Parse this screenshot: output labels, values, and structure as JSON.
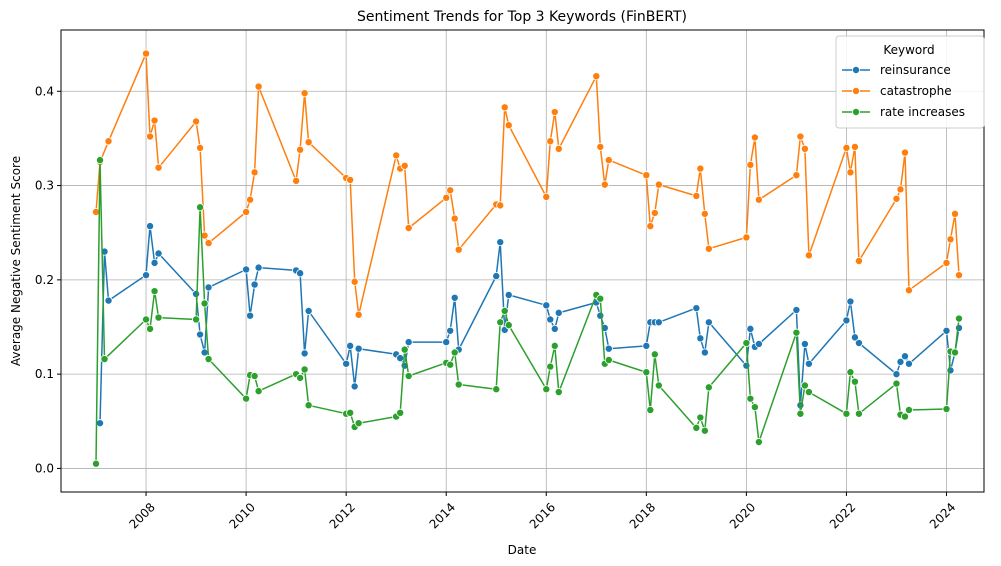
{
  "chart_data": {
    "type": "line",
    "title": "Sentiment Trends for Top 3 Keywords (FinBERT)",
    "xlabel": "Date",
    "ylabel": "Average Negative Sentiment Score",
    "xlim": [
      2006.3,
      2024.75
    ],
    "ylim": [
      -0.025,
      0.465
    ],
    "x_ticks": [
      2008,
      2010,
      2012,
      2014,
      2016,
      2018,
      2020,
      2022,
      2024
    ],
    "y_ticks": [
      0.0,
      0.1,
      0.2,
      0.3,
      0.4
    ],
    "y_tick_labels": [
      "0.0",
      "0.1",
      "0.2",
      "0.3",
      "0.4"
    ],
    "grid": true,
    "legend": {
      "title": "Keyword",
      "position": "top-right"
    },
    "series": [
      {
        "name": "reinsurance",
        "color": "#1f77b4",
        "x": [
          2007.08,
          2007.17,
          2007.25,
          2008.0,
          2008.08,
          2008.17,
          2008.25,
          2009.0,
          2009.08,
          2009.17,
          2009.25,
          2010.0,
          2010.08,
          2010.17,
          2010.25,
          2011.0,
          2011.08,
          2011.17,
          2011.25,
          2012.0,
          2012.08,
          2012.17,
          2012.25,
          2013.0,
          2013.08,
          2013.17,
          2013.25,
          2014.0,
          2014.08,
          2014.17,
          2014.25,
          2015.0,
          2015.08,
          2015.17,
          2015.25,
          2016.0,
          2016.08,
          2016.17,
          2016.25,
          2017.0,
          2017.08,
          2017.17,
          2017.25,
          2018.0,
          2018.08,
          2018.17,
          2018.25,
          2019.0,
          2019.08,
          2019.17,
          2019.25,
          2020.0,
          2020.08,
          2020.17,
          2020.25,
          2021.0,
          2021.08,
          2021.17,
          2021.25,
          2022.0,
          2022.08,
          2022.17,
          2022.25,
          2023.0,
          2023.08,
          2023.17,
          2023.25,
          2024.0,
          2024.08,
          2024.17,
          2024.25
        ],
        "y": [
          0.048,
          0.23,
          0.178,
          0.205,
          0.257,
          0.218,
          0.228,
          0.185,
          0.142,
          0.123,
          0.192,
          0.211,
          0.162,
          0.195,
          0.213,
          0.21,
          0.207,
          0.122,
          0.167,
          0.111,
          0.13,
          0.087,
          0.127,
          0.121,
          0.117,
          0.109,
          0.134,
          0.134,
          0.146,
          0.181,
          0.126,
          0.204,
          0.24,
          0.147,
          0.184,
          0.173,
          0.158,
          0.148,
          0.165,
          0.176,
          0.162,
          0.149,
          0.127,
          0.13,
          0.155,
          0.155,
          0.155,
          0.17,
          0.138,
          0.123,
          0.155,
          0.109,
          0.148,
          0.129,
          0.132,
          0.168,
          0.067,
          0.132,
          0.111,
          0.157,
          0.177,
          0.139,
          0.133,
          0.1,
          0.113,
          0.119,
          0.111,
          0.146,
          0.104,
          0.123,
          0.149
        ]
      },
      {
        "name": "catastrophe",
        "color": "#ff7f0e",
        "x": [
          2007.0,
          2007.08,
          2007.25,
          2008.0,
          2008.08,
          2008.17,
          2008.25,
          2009.0,
          2009.08,
          2009.17,
          2009.25,
          2010.0,
          2010.08,
          2010.17,
          2010.25,
          2011.0,
          2011.08,
          2011.17,
          2011.25,
          2012.0,
          2012.08,
          2012.17,
          2012.25,
          2013.0,
          2013.08,
          2013.17,
          2013.25,
          2014.0,
          2014.08,
          2014.17,
          2014.25,
          2015.0,
          2015.08,
          2015.17,
          2015.25,
          2016.0,
          2016.08,
          2016.17,
          2016.25,
          2017.0,
          2017.08,
          2017.17,
          2017.25,
          2018.0,
          2018.08,
          2018.17,
          2018.25,
          2019.0,
          2019.08,
          2019.17,
          2019.25,
          2020.0,
          2020.08,
          2020.17,
          2020.25,
          2021.0,
          2021.08,
          2021.17,
          2021.25,
          2022.0,
          2022.08,
          2022.17,
          2022.25,
          2023.0,
          2023.08,
          2023.17,
          2023.25,
          2024.0,
          2024.08,
          2024.17,
          2024.25
        ],
        "y": [
          0.272,
          0.325,
          0.347,
          0.44,
          0.352,
          0.369,
          0.319,
          0.368,
          0.34,
          0.247,
          0.239,
          0.272,
          0.285,
          0.314,
          0.405,
          0.305,
          0.338,
          0.398,
          0.346,
          0.308,
          0.306,
          0.198,
          0.163,
          0.332,
          0.318,
          0.321,
          0.255,
          0.287,
          0.295,
          0.265,
          0.232,
          0.28,
          0.279,
          0.383,
          0.364,
          0.288,
          0.347,
          0.378,
          0.339,
          0.416,
          0.341,
          0.301,
          0.327,
          0.311,
          0.257,
          0.271,
          0.301,
          0.289,
          0.318,
          0.27,
          0.233,
          0.245,
          0.322,
          0.351,
          0.285,
          0.311,
          0.352,
          0.339,
          0.226,
          0.34,
          0.314,
          0.341,
          0.22,
          0.286,
          0.296,
          0.335,
          0.189,
          0.218,
          0.243,
          0.27,
          0.205
        ]
      },
      {
        "name": "rate increases",
        "color": "#2ca02c",
        "x": [
          2007.0,
          2007.08,
          2007.17,
          2008.0,
          2008.08,
          2008.17,
          2008.25,
          2009.0,
          2009.08,
          2009.17,
          2009.25,
          2010.0,
          2010.08,
          2010.17,
          2010.25,
          2011.0,
          2011.08,
          2011.17,
          2011.25,
          2012.0,
          2012.08,
          2012.17,
          2012.25,
          2013.0,
          2013.08,
          2013.17,
          2013.25,
          2014.0,
          2014.08,
          2014.17,
          2014.25,
          2015.0,
          2015.08,
          2015.17,
          2015.25,
          2016.0,
          2016.08,
          2016.17,
          2016.25,
          2017.0,
          2017.08,
          2017.17,
          2017.25,
          2018.0,
          2018.08,
          2018.17,
          2018.25,
          2019.0,
          2019.08,
          2019.17,
          2019.25,
          2020.0,
          2020.08,
          2020.17,
          2020.25,
          2021.0,
          2021.08,
          2021.17,
          2021.25,
          2022.0,
          2022.08,
          2022.17,
          2022.25,
          2023.0,
          2023.08,
          2023.17,
          2023.25,
          2024.0,
          2024.08,
          2024.17,
          2024.25
        ],
        "y": [
          0.005,
          0.327,
          0.116,
          0.158,
          0.148,
          0.188,
          0.16,
          0.158,
          0.277,
          0.175,
          0.116,
          0.074,
          0.099,
          0.098,
          0.082,
          0.1,
          0.096,
          0.105,
          0.067,
          0.058,
          0.059,
          0.044,
          0.048,
          0.055,
          0.059,
          0.126,
          0.098,
          0.112,
          0.11,
          0.123,
          0.089,
          0.084,
          0.155,
          0.167,
          0.152,
          0.084,
          0.108,
          0.13,
          0.081,
          0.184,
          0.18,
          0.111,
          0.115,
          0.102,
          0.062,
          0.121,
          0.088,
          0.043,
          0.054,
          0.04,
          0.086,
          0.133,
          0.074,
          0.065,
          0.028,
          0.144,
          0.058,
          0.088,
          0.081,
          0.058,
          0.102,
          0.092,
          0.058,
          0.09,
          0.057,
          0.055,
          0.062,
          0.063,
          0.124,
          0.123,
          0.159
        ]
      }
    ]
  }
}
